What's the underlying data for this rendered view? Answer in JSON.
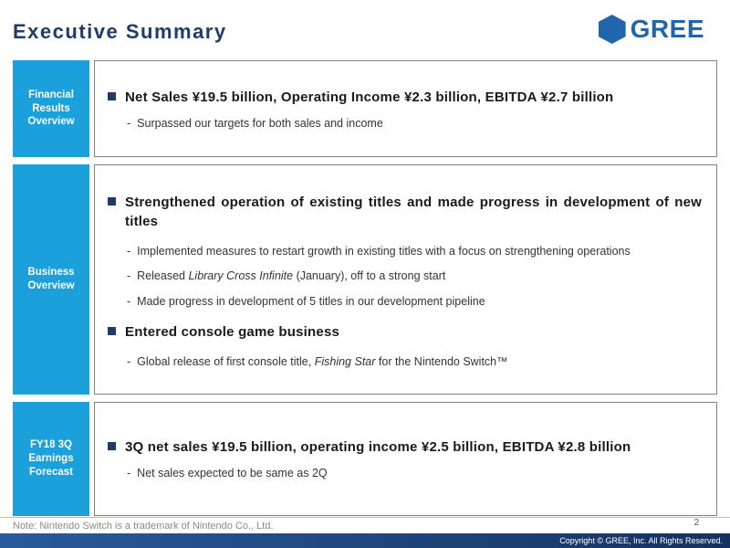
{
  "slide": {
    "title": "Executive Summary",
    "logo_text": "GREE",
    "page_number": "2",
    "note": "Note: Nintendo Switch is  a trademark of Nintendo Co., Ltd.",
    "copyright": "Copyright © GREE, Inc. All Rights Reserved."
  },
  "colors": {
    "accent_cyan": "#1ba0dc",
    "navy": "#1f3b69",
    "logo_blue": "#2166ad",
    "box_border": "#808080",
    "note_gray": "#8a8a8a"
  },
  "sections": [
    {
      "label": "Financial\nResults\nOverview",
      "items": [
        {
          "type": "bullet",
          "text": "Net Sales ¥19.5 billion, Operating Income ¥2.3 billion, EBITDA ¥2.7 billion"
        },
        {
          "type": "sub",
          "text": "Surpassed our targets for both sales and income"
        }
      ]
    },
    {
      "label": "Business\nOverview",
      "items": [
        {
          "type": "bullet",
          "text": "Strengthened operation of existing titles and made progress in development of new titles"
        },
        {
          "type": "sub",
          "text": "Implemented measures to restart growth in existing titles with a focus on strengthening operations"
        },
        {
          "type": "sub",
          "parts": [
            "Released ",
            "Library Cross Infinite",
            " (January), off to a strong start"
          ]
        },
        {
          "type": "sub",
          "text": "Made progress in development of 5 titles in our development pipeline"
        },
        {
          "type": "bullet",
          "text": "Entered console game business"
        },
        {
          "type": "sub",
          "parts": [
            "Global release of first console title, ",
            "Fishing Star",
            " for the Nintendo Switch™"
          ]
        }
      ]
    },
    {
      "label": "FY18 3Q\nEarnings\nForecast",
      "items": [
        {
          "type": "bullet",
          "text": "3Q net sales ¥19.5 billion, operating income ¥2.5 billion, EBITDA ¥2.8 billion"
        },
        {
          "type": "sub",
          "text": "Net sales expected to be same as 2Q"
        }
      ]
    }
  ]
}
